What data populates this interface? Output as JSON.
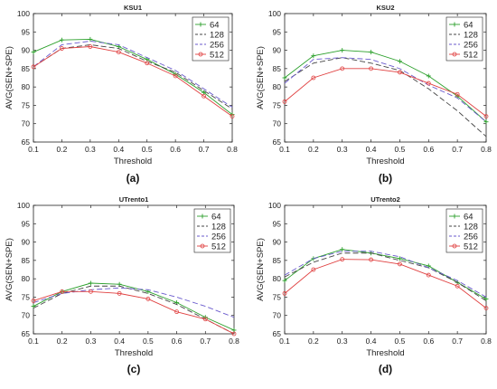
{
  "chart_data": [
    {
      "type": "line",
      "panel_label": "(a)",
      "title": "KSU1",
      "xlabel": "Threshold",
      "ylabel": "AVG(SEN+SPE)",
      "x": [
        0.1,
        0.2,
        0.3,
        0.4,
        0.5,
        0.6,
        0.7,
        0.8
      ],
      "xlim": [
        0.1,
        0.8
      ],
      "ylim": [
        65,
        100
      ],
      "xticks": [
        "0.1",
        "0.2",
        "0.3",
        "0.4",
        "0.5",
        "0.6",
        "0.7",
        "0.8"
      ],
      "yticks": [
        "65",
        "70",
        "75",
        "80",
        "85",
        "90",
        "95",
        "100"
      ],
      "legend_position": "top-right",
      "series": [
        {
          "name": "64",
          "values": [
            89.5,
            92.8,
            93.0,
            91.0,
            87.5,
            83.5,
            78.5,
            72.5
          ]
        },
        {
          "name": "128",
          "values": [
            85.5,
            90.5,
            91.5,
            90.5,
            87.0,
            84.0,
            79.0,
            74.0
          ]
        },
        {
          "name": "256",
          "values": [
            85.5,
            91.5,
            92.5,
            91.5,
            88.0,
            84.5,
            79.5,
            74.5
          ]
        },
        {
          "name": "512",
          "values": [
            85.5,
            90.5,
            91.0,
            89.5,
            86.5,
            83.0,
            77.5,
            72.0
          ]
        }
      ]
    },
    {
      "type": "line",
      "panel_label": "(b)",
      "title": "KSU2",
      "xlabel": "Threshold",
      "ylabel": "AVG(SEN+SPE)",
      "x": [
        0.1,
        0.2,
        0.3,
        0.4,
        0.5,
        0.6,
        0.7,
        0.8
      ],
      "xlim": [
        0.1,
        0.8
      ],
      "ylim": [
        65,
        100
      ],
      "xticks": [
        "0.1",
        "0.2",
        "0.3",
        "0.4",
        "0.5",
        "0.6",
        "0.7",
        "0.8"
      ],
      "yticks": [
        "65",
        "70",
        "75",
        "80",
        "85",
        "90",
        "95",
        "100"
      ],
      "legend_position": "top-right",
      "series": [
        {
          "name": "64",
          "values": [
            82.5,
            88.5,
            90.0,
            89.5,
            87.0,
            83.0,
            77.5,
            70.5
          ]
        },
        {
          "name": "128",
          "values": [
            81.5,
            86.5,
            88.0,
            86.5,
            84.5,
            79.5,
            73.5,
            66.5
          ]
        },
        {
          "name": "256",
          "values": [
            81.0,
            87.5,
            88.0,
            87.5,
            85.0,
            80.5,
            77.0,
            70.5
          ]
        },
        {
          "name": "512",
          "values": [
            76.0,
            82.5,
            85.0,
            85.0,
            84.0,
            81.0,
            78.0,
            72.0
          ]
        }
      ]
    },
    {
      "type": "line",
      "panel_label": "(c)",
      "title": "UTrento1",
      "xlabel": "Threshold",
      "ylabel": "AVG(SEN+SPE)",
      "x": [
        0.1,
        0.2,
        0.3,
        0.4,
        0.5,
        0.6,
        0.7,
        0.8
      ],
      "xlim": [
        0.1,
        0.8
      ],
      "ylim": [
        65,
        100
      ],
      "xticks": [
        "0.1",
        "0.2",
        "0.3",
        "0.4",
        "0.5",
        "0.6",
        "0.7",
        "0.8"
      ],
      "yticks": [
        "65",
        "70",
        "75",
        "80",
        "85",
        "90",
        "95",
        "100"
      ],
      "legend_position": "top-right",
      "series": [
        {
          "name": "64",
          "values": [
            72.5,
            76.5,
            78.8,
            78.5,
            76.5,
            73.5,
            69.5,
            66.0
          ]
        },
        {
          "name": "128",
          "values": [
            72.0,
            76.0,
            78.0,
            78.0,
            76.0,
            73.0,
            69.0,
            65.0
          ]
        },
        {
          "name": "256",
          "values": [
            73.5,
            76.0,
            77.0,
            77.5,
            77.0,
            75.0,
            72.5,
            69.5
          ]
        },
        {
          "name": "512",
          "values": [
            74.0,
            76.5,
            76.5,
            76.0,
            74.5,
            71.0,
            69.0,
            65.0
          ]
        }
      ]
    },
    {
      "type": "line",
      "panel_label": "(d)",
      "title": "UTrento2",
      "xlabel": "Threshold",
      "ylabel": "AVG(SEN+SPE)",
      "x": [
        0.1,
        0.2,
        0.3,
        0.4,
        0.5,
        0.6,
        0.7,
        0.8
      ],
      "xlim": [
        0.1,
        0.8
      ],
      "ylim": [
        65,
        100
      ],
      "xticks": [
        "0.1",
        "0.2",
        "0.3",
        "0.4",
        "0.5",
        "0.6",
        "0.7",
        "0.8"
      ],
      "yticks": [
        "65",
        "70",
        "75",
        "80",
        "85",
        "90",
        "95",
        "100"
      ],
      "legend_position": "top-right",
      "series": [
        {
          "name": "64",
          "values": [
            79.5,
            85.5,
            88.0,
            87.0,
            85.5,
            83.5,
            79.0,
            74.5
          ]
        },
        {
          "name": "128",
          "values": [
            80.5,
            84.5,
            87.0,
            87.0,
            85.0,
            83.0,
            79.0,
            74.0
          ]
        },
        {
          "name": "256",
          "values": [
            81.0,
            85.5,
            87.5,
            87.5,
            86.0,
            83.0,
            79.5,
            75.0
          ]
        },
        {
          "name": "512",
          "values": [
            76.0,
            82.5,
            85.3,
            85.2,
            84.0,
            81.0,
            78.0,
            72.0
          ]
        }
      ]
    }
  ],
  "style": {
    "series_colors": [
      "#2ca02c",
      "#444444",
      "#6a5acd",
      "#e04040"
    ],
    "series_dash": [
      "",
      "6,3",
      "6,3",
      ""
    ],
    "series_marker": [
      "plus",
      "none",
      "none",
      "circle"
    ]
  }
}
